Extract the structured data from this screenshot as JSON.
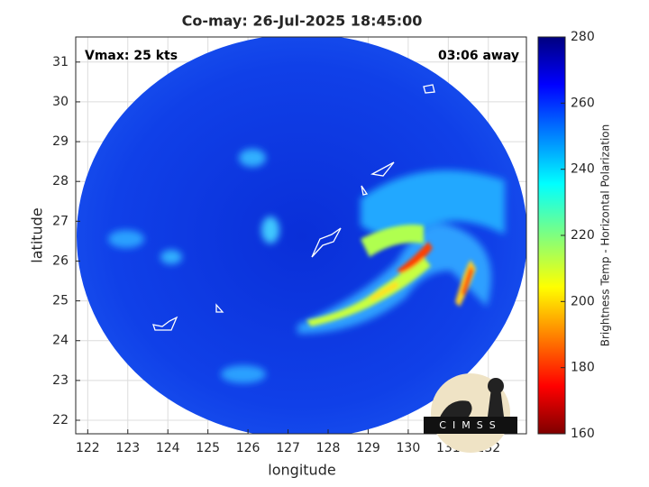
{
  "chart_data": {
    "type": "map",
    "title": "Co-may: 26-Jul-2025 18:45:00",
    "annotations": [
      "Vmax: 25 kts",
      "03:06 away"
    ],
    "x_label": "longitude",
    "y_label": "latitude",
    "xlim": [
      121.7,
      132.95
    ],
    "xticks": [
      122,
      123,
      124,
      125,
      126,
      127,
      128,
      129,
      130,
      131,
      132
    ],
    "ylim": [
      21.66,
      31.63
    ],
    "yticks": [
      22,
      23,
      24,
      25,
      26,
      27,
      28,
      29,
      30,
      31
    ],
    "grid": true,
    "colorbar": {
      "label": "Brightness Temp - Horizontal Polarization",
      "lim": [
        160,
        280
      ],
      "ticks": [
        160,
        180,
        200,
        220,
        240,
        260,
        280
      ]
    },
    "logo": "CIMSS"
  }
}
